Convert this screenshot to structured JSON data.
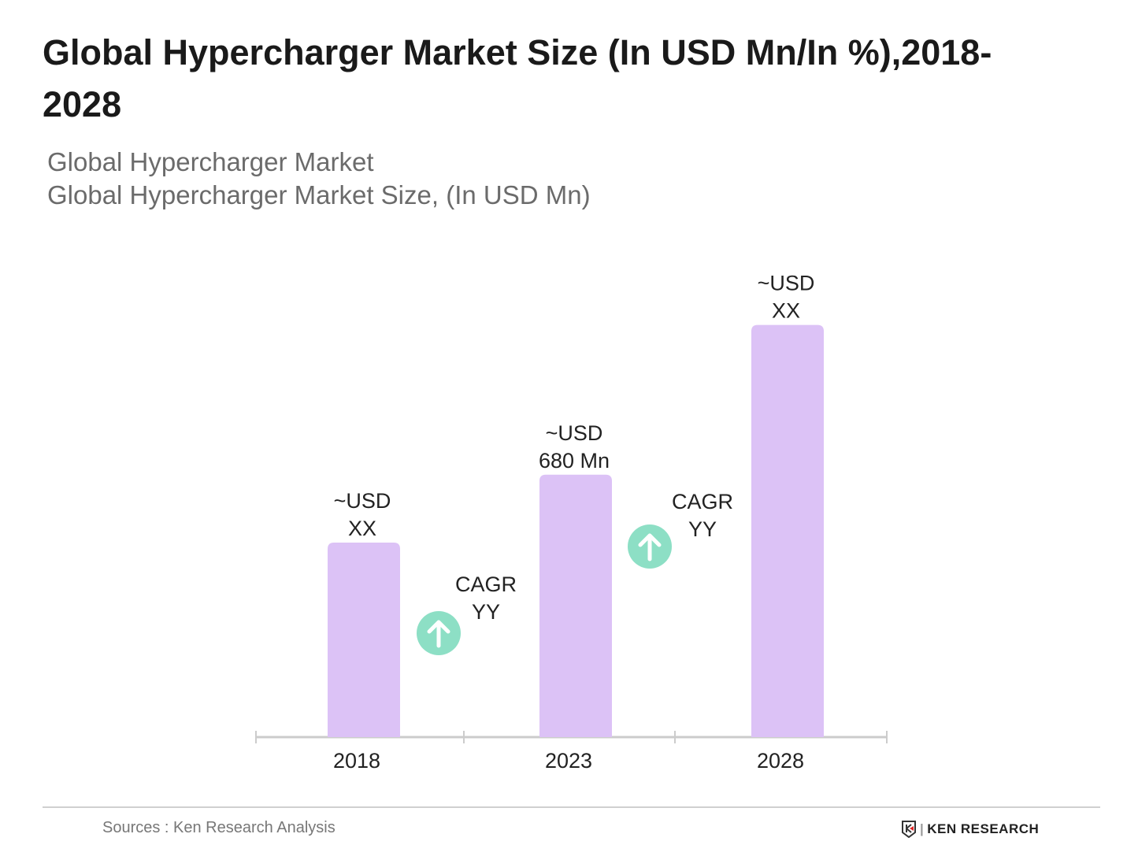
{
  "title": "Global Hypercharger Market Size (In USD Mn/In %),2018-2028",
  "subtitle1": "Global Hypercharger Market",
  "subtitle2": "Global Hypercharger Market Size, (In USD Mn)",
  "source": "Sources : Ken Research Analysis",
  "logo_text": "KEN RESEARCH",
  "chart_data": {
    "type": "bar",
    "categories": [
      "2018",
      "2023",
      "2028"
    ],
    "values": [
      504,
      680,
      1068
    ],
    "data_labels": [
      [
        "~USD",
        "XX"
      ],
      [
        "~USD",
        "680 Mn"
      ],
      [
        "~USD",
        "XX"
      ]
    ],
    "annotations": [
      {
        "between": [
          "2018",
          "2023"
        ],
        "lines": [
          "CAGR",
          "YY"
        ],
        "icon": "arrow-up-circle-icon"
      },
      {
        "between": [
          "2023",
          "2028"
        ],
        "lines": [
          "CAGR",
          "YY"
        ],
        "icon": "arrow-up-circle-icon"
      }
    ],
    "ylim": [
      0,
      1100
    ],
    "grid": false,
    "bar_color": "#dcc2f6",
    "arrow_color": "#8ddfc5",
    "axis_color": "#cccccc"
  }
}
